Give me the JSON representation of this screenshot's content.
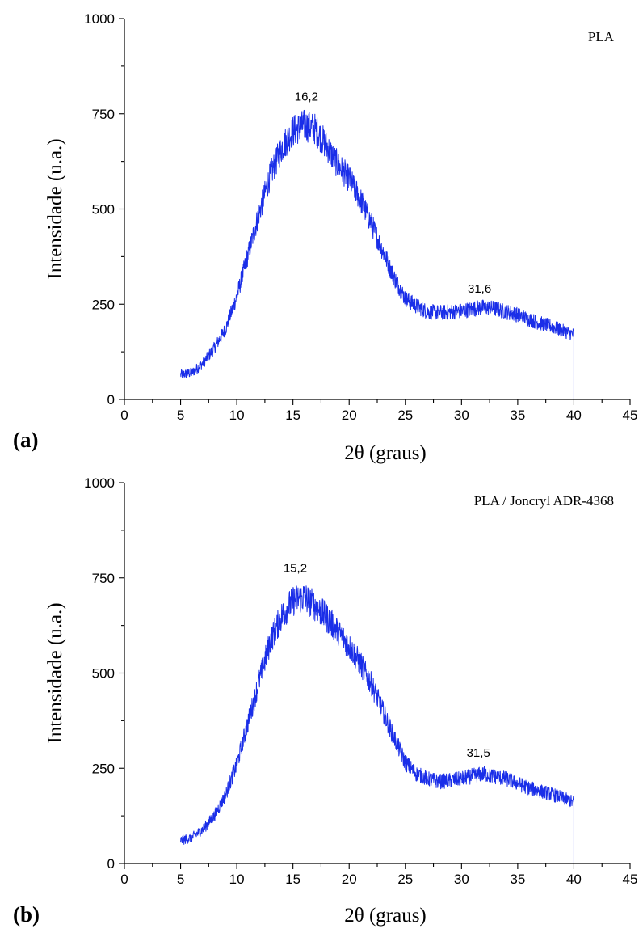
{
  "chart_data": [
    {
      "type": "line",
      "panel_label": "(a)",
      "legend": "PLA",
      "xlabel": "2θ (graus)",
      "ylabel": "Intensidade (u.a.)",
      "xlim": [
        0,
        45
      ],
      "ylim": [
        0,
        1000
      ],
      "x_ticks": [
        "0",
        "5",
        "10",
        "15",
        "20",
        "25",
        "30",
        "35",
        "40",
        "45"
      ],
      "y_ticks": [
        "0",
        "250",
        "500",
        "750",
        "1000"
      ],
      "annotations": [
        {
          "text": "16,2",
          "x": 16.2,
          "y": 785
        },
        {
          "text": "31,6",
          "x": 31.6,
          "y": 280
        }
      ],
      "series": [
        {
          "color": "#1a2ee8",
          "x": [
            5,
            6,
            7,
            8,
            9,
            10,
            11,
            12,
            13,
            14,
            15,
            16,
            17,
            18,
            19,
            20,
            21,
            22,
            23,
            24,
            25,
            26,
            27,
            28,
            29,
            30,
            31,
            32,
            33,
            34,
            35,
            36,
            37,
            38,
            39,
            40
          ],
          "y": [
            65,
            70,
            95,
            135,
            185,
            270,
            380,
            490,
            590,
            660,
            705,
            720,
            710,
            665,
            615,
            580,
            525,
            460,
            390,
            320,
            265,
            245,
            230,
            228,
            230,
            232,
            238,
            242,
            238,
            230,
            222,
            210,
            200,
            192,
            180,
            170
          ],
          "end_drop_to": 0
        }
      ]
    },
    {
      "type": "line",
      "panel_label": "(b)",
      "legend": "PLA / Joncryl ADR-4368",
      "xlabel": "2θ (graus)",
      "ylabel": "Intensidade (u.a.)",
      "xlim": [
        0,
        45
      ],
      "ylim": [
        0,
        1000
      ],
      "x_ticks": [
        "0",
        "5",
        "10",
        "15",
        "20",
        "25",
        "30",
        "35",
        "40",
        "45"
      ],
      "y_ticks": [
        "0",
        "250",
        "500",
        "750",
        "1000"
      ],
      "annotations": [
        {
          "text": "15,2",
          "x": 15.2,
          "y": 765
        },
        {
          "text": "31,5",
          "x": 31.5,
          "y": 280
        }
      ],
      "series": [
        {
          "color": "#1a2ee8",
          "x": [
            5,
            6,
            7,
            8,
            9,
            10,
            11,
            12,
            13,
            14,
            15,
            16,
            17,
            18,
            19,
            20,
            21,
            22,
            23,
            24,
            25,
            26,
            27,
            28,
            29,
            30,
            31,
            32,
            33,
            34,
            35,
            36,
            37,
            38,
            39,
            40
          ],
          "y": [
            60,
            68,
            90,
            125,
            180,
            260,
            370,
            480,
            585,
            650,
            690,
            700,
            675,
            645,
            610,
            570,
            525,
            470,
            400,
            330,
            265,
            235,
            222,
            215,
            218,
            222,
            230,
            235,
            228,
            222,
            210,
            198,
            190,
            182,
            172,
            160
          ],
          "end_drop_to": 0
        }
      ]
    }
  ]
}
